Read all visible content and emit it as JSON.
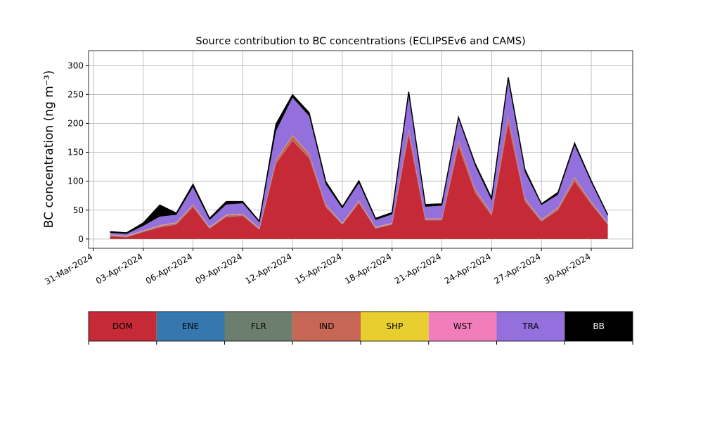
{
  "chart_data": {
    "type": "stacked_area",
    "title": "Source contribution to BC concentrations (ECLIPSEv6 and CAMS)",
    "y_label": "BC concentration (ng m⁻³)",
    "x": [
      "2024-04-01",
      "2024-04-02",
      "2024-04-03",
      "2024-04-04",
      "2024-04-05",
      "2024-04-06",
      "2024-04-07",
      "2024-04-08",
      "2024-04-09",
      "2024-04-10",
      "2024-04-11",
      "2024-04-12",
      "2024-04-13",
      "2024-04-14",
      "2024-04-15",
      "2024-04-16",
      "2024-04-17",
      "2024-04-18",
      "2024-04-19",
      "2024-04-20",
      "2024-04-21",
      "2024-04-22",
      "2024-04-23",
      "2024-04-24",
      "2024-04-25",
      "2024-04-26",
      "2024-04-27",
      "2024-04-28",
      "2024-04-29",
      "2024-04-30",
      "2024-05-01"
    ],
    "series": [
      {
        "name": "DOM",
        "color": "#c62a37",
        "values": [
          5,
          3,
          12,
          20,
          25,
          55,
          18,
          38,
          40,
          16,
          130,
          170,
          140,
          55,
          25,
          62,
          18,
          25,
          180,
          32,
          32,
          160,
          80,
          40,
          200,
          65,
          30,
          50,
          100,
          60,
          25
        ]
      },
      {
        "name": "ENE",
        "color": "#3677b0",
        "values": [
          0.5,
          0.5,
          0.5,
          0.5,
          0.5,
          0.5,
          0.5,
          0.5,
          0.5,
          0.5,
          0.5,
          0.5,
          0.5,
          0.5,
          0.5,
          0.5,
          0.5,
          0.5,
          0.5,
          0.5,
          0.5,
          0.5,
          0.5,
          0.5,
          0.5,
          0.5,
          0.5,
          0.5,
          0.5,
          0.5,
          0.5
        ]
      },
      {
        "name": "FLR",
        "color": "#6c7f6f",
        "values": [
          0.3,
          0.3,
          0.3,
          0.3,
          0.3,
          0.3,
          0.3,
          0.3,
          0.3,
          0.3,
          0.3,
          0.3,
          0.3,
          0.3,
          0.3,
          0.3,
          0.3,
          0.3,
          0.3,
          0.3,
          0.3,
          0.3,
          0.3,
          0.3,
          0.3,
          0.3,
          0.3,
          0.3,
          0.3,
          0.3,
          0.3
        ]
      },
      {
        "name": "IND",
        "color": "#c76655",
        "values": [
          1,
          1,
          1,
          2,
          2,
          3,
          1,
          2,
          2,
          1,
          5,
          8,
          6,
          3,
          1,
          3,
          1,
          1,
          8,
          2,
          2,
          8,
          5,
          3,
          10,
          4,
          2,
          3,
          5,
          3,
          1
        ]
      },
      {
        "name": "SHP",
        "color": "#e8cf2f",
        "values": [
          0.5,
          0.5,
          0.5,
          0.5,
          0.5,
          0.5,
          0.5,
          0.5,
          0.5,
          0.5,
          0.5,
          0.5,
          0.5,
          0.5,
          0.5,
          0.5,
          0.5,
          0.5,
          0.5,
          0.5,
          0.5,
          0.5,
          0.5,
          0.5,
          0.5,
          0.5,
          0.5,
          0.5,
          0.5,
          0.5,
          0.5
        ]
      },
      {
        "name": "WST",
        "color": "#f17eba",
        "values": [
          0.5,
          0.5,
          0.5,
          0.5,
          0.5,
          0.5,
          0.5,
          0.5,
          0.5,
          0.5,
          0.5,
          0.5,
          0.5,
          0.5,
          0.5,
          0.5,
          0.5,
          0.5,
          0.5,
          0.5,
          0.5,
          0.5,
          0.5,
          0.5,
          0.5,
          0.5,
          0.5,
          0.5,
          0.5,
          0.5,
          0.5
        ]
      },
      {
        "name": "TRA",
        "color": "#9370db",
        "values": [
          3,
          3,
          8,
          15,
          13,
          30,
          12,
          18,
          18,
          10,
          50,
          65,
          65,
          35,
          25,
          30,
          12,
          15,
          60,
          20,
          22,
          38,
          40,
          22,
          62,
          45,
          25,
          22,
          55,
          33,
          12
        ]
      },
      {
        "name": "BB",
        "color": "#000000",
        "values": [
          2,
          2,
          5,
          20,
          3,
          5,
          3,
          5,
          3,
          2,
          12,
          5,
          6,
          5,
          3,
          4,
          3,
          3,
          5,
          4,
          3,
          3,
          4,
          4,
          6,
          5,
          2,
          4,
          4,
          3,
          2
        ]
      }
    ],
    "xlim": [
      "2024-03-30T17:00",
      "2024-05-02T12:00"
    ],
    "xticks": [
      {
        "value": "2024-03-31",
        "label": "31-Mar-2024"
      },
      {
        "value": "2024-04-03",
        "label": "03-Apr-2024"
      },
      {
        "value": "2024-04-06",
        "label": "06-Apr-2024"
      },
      {
        "value": "2024-04-09",
        "label": "09-Apr-2024"
      },
      {
        "value": "2024-04-12",
        "label": "12-Apr-2024"
      },
      {
        "value": "2024-04-15",
        "label": "15-Apr-2024"
      },
      {
        "value": "2024-04-18",
        "label": "18-Apr-2024"
      },
      {
        "value": "2024-04-21",
        "label": "21-Apr-2024"
      },
      {
        "value": "2024-04-24",
        "label": "24-Apr-2024"
      },
      {
        "value": "2024-04-27",
        "label": "27-Apr-2024"
      },
      {
        "value": "2024-04-30",
        "label": "30-Apr-2024"
      }
    ],
    "ylim": [
      -16,
      326
    ],
    "yticks": [
      0,
      50,
      100,
      150,
      200,
      250,
      300
    ],
    "grid": true
  }
}
